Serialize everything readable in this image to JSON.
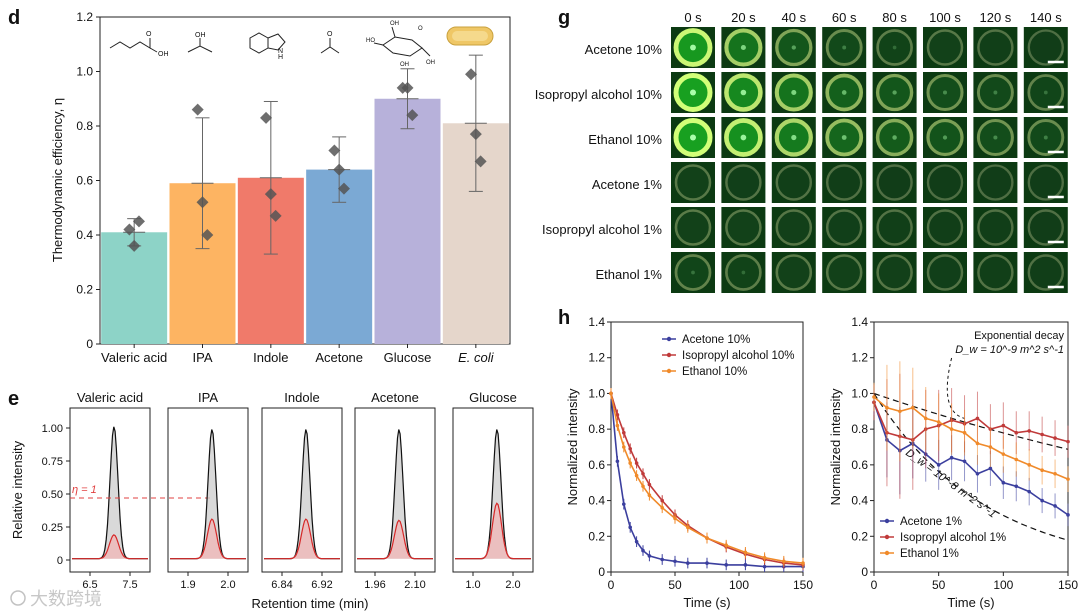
{
  "panels": {
    "d": "d",
    "e": "e",
    "g": "g",
    "h": "h"
  },
  "watermark": "大数跨境",
  "chart_data": [
    {
      "id": "d",
      "type": "bar",
      "ylabel": "Thermodynamic efficiency, η",
      "ylim": [
        0,
        1.2
      ],
      "yticks": [
        "0",
        "0.2",
        "0.4",
        "0.6",
        "0.8",
        "1.0",
        "1.2"
      ],
      "categories": [
        "Valeric acid",
        "IPA",
        "Indole",
        "Acetone",
        "Glucose",
        "E. coli"
      ],
      "values": [
        0.41,
        0.59,
        0.61,
        0.64,
        0.9,
        0.81
      ],
      "errors": [
        0.05,
        0.24,
        0.28,
        0.12,
        0.11,
        0.25
      ],
      "points": [
        [
          0.42,
          0.36,
          0.45
        ],
        [
          0.86,
          0.52,
          0.4
        ],
        [
          0.83,
          0.55,
          0.47
        ],
        [
          0.71,
          0.64,
          0.57
        ],
        [
          0.94,
          0.94,
          0.84
        ],
        [
          0.99,
          0.77,
          0.67
        ]
      ],
      "colors": [
        "#8dd3c7",
        "#fdb462",
        "#f07a6a",
        "#7ba9d4",
        "#b7b1da",
        "#e5d6cb"
      ],
      "grid": false
    },
    {
      "id": "e",
      "type": "line",
      "ylabel": "Relative intensity",
      "xlabel": "Retention time (min)",
      "yticks": [
        "0",
        "0.25",
        "0.50",
        "0.75",
        "1.00"
      ],
      "threshold_label": "η = 1",
      "threshold_value": 0.47,
      "subplots": [
        {
          "title": "Valeric acid",
          "xticks": [
            "6.5",
            "7.5"
          ],
          "black_peak": 1.0,
          "red_peak": 0.18
        },
        {
          "title": "IPA",
          "xticks": [
            "1.9",
            "2.0"
          ],
          "black_peak": 0.98,
          "red_peak": 0.3
        },
        {
          "title": "Indole",
          "xticks": [
            "6.84",
            "6.92"
          ],
          "black_peak": 0.98,
          "red_peak": 0.3
        },
        {
          "title": "Acetone",
          "xticks": [
            "1.96",
            "2.10"
          ],
          "black_peak": 0.98,
          "red_peak": 0.29
        },
        {
          "title": "Glucose",
          "xticks": [
            "1.0",
            "2.0"
          ],
          "black_peak": 0.98,
          "red_peak": 0.42
        }
      ]
    },
    {
      "id": "g",
      "type": "table",
      "columns": [
        "0 s",
        "20 s",
        "40 s",
        "60 s",
        "80 s",
        "100 s",
        "120 s",
        "140 s"
      ],
      "rows": [
        "Acetone 10%",
        "Isopropyl alcohol 10%",
        "Ethanol 10%",
        "Acetone 1%",
        "Isopropyl alcohol 1%",
        "Ethanol 1%"
      ],
      "ring_brightness": [
        [
          0.95,
          0.7,
          0.45,
          0.3,
          0.22,
          0.18,
          0.15,
          0.12
        ],
        [
          1.0,
          0.85,
          0.7,
          0.55,
          0.45,
          0.35,
          0.3,
          0.25
        ],
        [
          1.0,
          0.9,
          0.75,
          0.6,
          0.5,
          0.42,
          0.35,
          0.3
        ],
        [
          0.18,
          0.16,
          0.15,
          0.14,
          0.13,
          0.12,
          0.12,
          0.12
        ],
        [
          0.2,
          0.18,
          0.17,
          0.16,
          0.15,
          0.14,
          0.14,
          0.13
        ],
        [
          0.25,
          0.22,
          0.2,
          0.18,
          0.17,
          0.16,
          0.15,
          0.14
        ]
      ]
    },
    {
      "id": "h1",
      "type": "line",
      "xlabel": "Time (s)",
      "ylabel": "Normalized intensity",
      "xlim": [
        0,
        150
      ],
      "ylim": [
        0,
        1.4
      ],
      "xticks": [
        "0",
        "50",
        "100",
        "150"
      ],
      "yticks": [
        "0",
        "0.2",
        "0.4",
        "0.6",
        "0.8",
        "1.0",
        "1.2",
        "1.4"
      ],
      "x": [
        0,
        5,
        10,
        15,
        20,
        25,
        30,
        40,
        50,
        60,
        75,
        90,
        105,
        120,
        135,
        150
      ],
      "series": [
        {
          "name": "Acetone 10%",
          "color": "#3b3f9e",
          "values": [
            1.0,
            0.62,
            0.38,
            0.25,
            0.17,
            0.12,
            0.09,
            0.07,
            0.06,
            0.05,
            0.05,
            0.04,
            0.04,
            0.03,
            0.03,
            0.03
          ]
        },
        {
          "name": "Isopropyl alcohol 10%",
          "color": "#c03a3a",
          "values": [
            1.0,
            0.88,
            0.78,
            0.69,
            0.61,
            0.55,
            0.49,
            0.4,
            0.32,
            0.26,
            0.19,
            0.14,
            0.1,
            0.07,
            0.05,
            0.04
          ]
        },
        {
          "name": "Ethanol 10%",
          "color": "#f08a2a",
          "values": [
            1.0,
            0.82,
            0.7,
            0.61,
            0.54,
            0.48,
            0.43,
            0.36,
            0.3,
            0.25,
            0.19,
            0.15,
            0.11,
            0.08,
            0.06,
            0.05
          ]
        }
      ]
    },
    {
      "id": "h2",
      "type": "line",
      "xlabel": "Time (s)",
      "ylabel": "Normalized intensity",
      "xlim": [
        0,
        150
      ],
      "ylim": [
        0,
        1.4
      ],
      "xticks": [
        "0",
        "50",
        "100",
        "150"
      ],
      "yticks": [
        "0",
        "0.2",
        "0.4",
        "0.6",
        "0.8",
        "1.0",
        "1.2",
        "1.4"
      ],
      "x": [
        0,
        10,
        20,
        30,
        40,
        50,
        60,
        70,
        80,
        90,
        100,
        110,
        120,
        130,
        140,
        150
      ],
      "series": [
        {
          "name": "Acetone 1%",
          "color": "#3b3f9e",
          "values": [
            0.95,
            0.74,
            0.68,
            0.72,
            0.66,
            0.6,
            0.64,
            0.62,
            0.55,
            0.58,
            0.5,
            0.48,
            0.45,
            0.4,
            0.37,
            0.32
          ]
        },
        {
          "name": "Isopropyl alcohol 1%",
          "color": "#c03a3a",
          "values": [
            0.95,
            0.78,
            0.76,
            0.74,
            0.8,
            0.82,
            0.85,
            0.83,
            0.86,
            0.8,
            0.82,
            0.78,
            0.79,
            0.77,
            0.75,
            0.73
          ]
        },
        {
          "name": "Ethanol 1%",
          "color": "#f08a2a",
          "values": [
            0.98,
            0.92,
            0.9,
            0.92,
            0.86,
            0.84,
            0.8,
            0.78,
            0.72,
            0.7,
            0.66,
            0.63,
            0.6,
            0.57,
            0.55,
            0.52
          ]
        }
      ],
      "error_half_width": [
        0.1,
        0.3,
        0.35,
        0.28,
        0.22,
        0.2,
        0.18,
        0.16,
        0.15,
        0.14,
        0.13,
        0.12,
        0.11,
        0.1,
        0.1,
        0.09
      ],
      "fits": [
        {
          "label": "Exponential decay",
          "label2": "D_w = 10^-9 m^2 s^-1",
          "k": 0.0025
        },
        {
          "label": "D_w = 10^-8 m^2 s^-1",
          "k": 0.0115
        }
      ]
    }
  ]
}
